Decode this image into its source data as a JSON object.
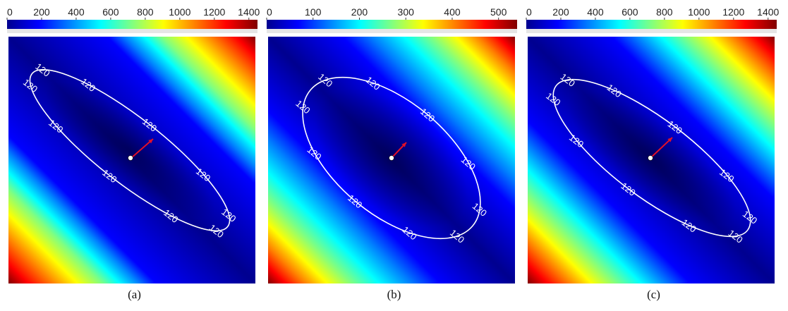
{
  "colormap": "jet",
  "colormap_stops": [
    "#00008f",
    "#0000ff",
    "#0080ff",
    "#00ffff",
    "#80ff80",
    "#ffff00",
    "#ff8000",
    "#ff0000",
    "#800000"
  ],
  "chart_data": [
    {
      "type": "heatmap",
      "panel_label": "(a)",
      "colorbar": {
        "ticks": [
          0,
          200,
          400,
          600,
          800,
          1000,
          1200,
          1400
        ],
        "range": [
          0,
          1450
        ]
      },
      "contour_level": 120,
      "contour_labels": [
        "120",
        "120",
        "120",
        "120",
        "120",
        "120",
        "120",
        "120",
        "120",
        "120"
      ],
      "min_point_marker": "white dot",
      "gradient_arrow": "red arrow",
      "colors": {
        "contour": "#ffffff",
        "marker": "#ffffff",
        "arrow": "#e0102a"
      }
    },
    {
      "type": "heatmap",
      "panel_label": "(b)",
      "colorbar": {
        "ticks": [
          0,
          100,
          200,
          300,
          400,
          500
        ],
        "range": [
          0,
          540
        ]
      },
      "contour_level": 120,
      "contour_labels": [
        "120",
        "120",
        "120",
        "120",
        "120",
        "120",
        "120",
        "120",
        "120",
        "120"
      ],
      "min_point_marker": "white dot",
      "gradient_arrow": "red arrow",
      "colors": {
        "contour": "#ffffff",
        "marker": "#ffffff",
        "arrow": "#e0102a"
      }
    },
    {
      "type": "heatmap",
      "panel_label": "(c)",
      "colorbar": {
        "ticks": [
          0,
          200,
          400,
          600,
          800,
          1000,
          1200,
          1400
        ],
        "range": [
          0,
          1450
        ]
      },
      "contour_level": 120,
      "contour_labels": [
        "120",
        "120",
        "120",
        "120",
        "120",
        "120",
        "120",
        "120",
        "120",
        "120"
      ],
      "min_point_marker": "white dot",
      "gradient_arrow": "red arrow",
      "colors": {
        "contour": "#ffffff",
        "marker": "#ffffff",
        "arrow": "#e0102a"
      }
    }
  ]
}
